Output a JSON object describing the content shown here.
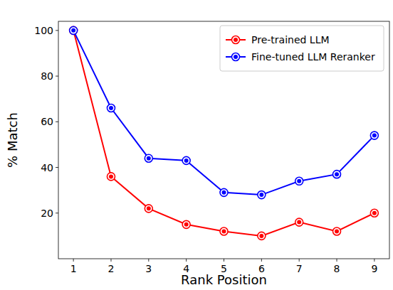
{
  "chart_data": {
    "type": "line",
    "x_label": "Rank Position",
    "y_label": "% Match",
    "x": [
      1,
      2,
      3,
      4,
      5,
      6,
      7,
      8,
      9
    ],
    "series": [
      {
        "name": "Pre-trained LLM",
        "color": "#ff0000",
        "marker": "circle",
        "values": [
          100,
          36,
          22,
          15,
          12,
          10,
          16,
          12,
          20
        ]
      },
      {
        "name": "Fine-tuned LLM Reranker",
        "color": "#0000ff",
        "marker": "circle",
        "values": [
          100,
          66,
          44,
          43,
          29,
          28,
          34,
          37,
          54
        ]
      }
    ],
    "xlim": [
      0.6,
      9.4
    ],
    "xticks": [
      1,
      2,
      3,
      4,
      5,
      6,
      7,
      8,
      9
    ],
    "ylim": [
      0,
      104
    ],
    "yticks": [
      20,
      40,
      60,
      80,
      100
    ],
    "grid": false,
    "legend": "upper right"
  }
}
